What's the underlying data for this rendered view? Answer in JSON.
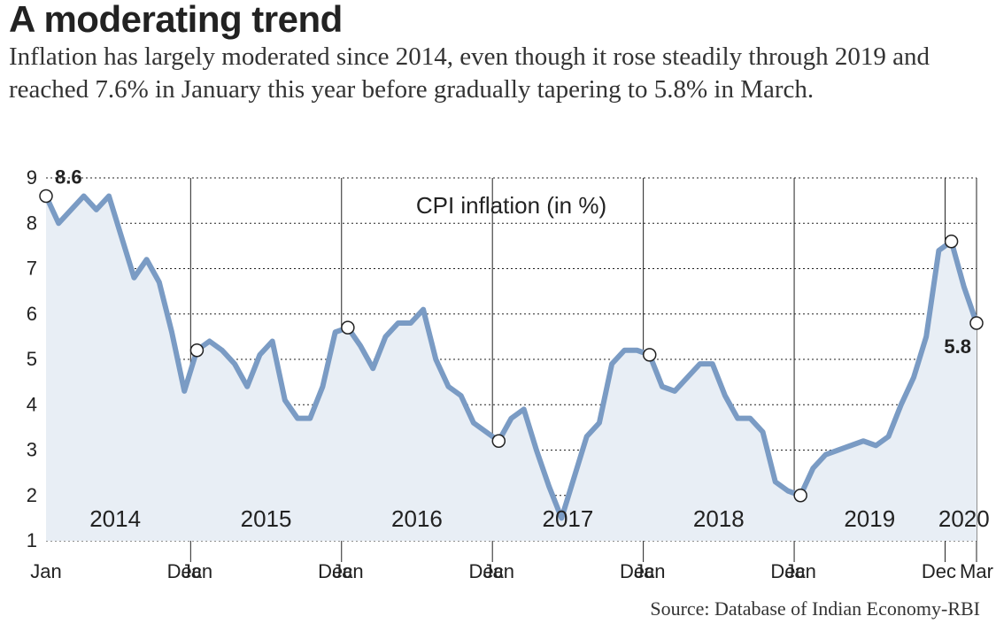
{
  "title": "A moderating trend",
  "subtitle": "Inflation has largely moderated since 2014, even though it rose steadily through 2019 and reached 7.6% in January this year before gradually tapering to 5.8% in March.",
  "source": "Source: Database of Indian Economy-RBI",
  "chart": {
    "type": "line-area",
    "legend": "CPI inflation (in %)",
    "line_color": "#7a9bc4",
    "line_width": 6,
    "area_color": "#e8eef5",
    "grid_color": "#222222",
    "background_color": "#ffffff",
    "marker_stroke": "#222222",
    "marker_fill": "#ffffff",
    "marker_radius": 7,
    "yaxis": {
      "min": 1,
      "max": 9,
      "ticks": [
        1,
        2,
        3,
        4,
        5,
        6,
        7,
        8,
        9
      ]
    },
    "years": [
      "2014",
      "2015",
      "2016",
      "2017",
      "2018",
      "2019",
      "2020"
    ],
    "month_labels": [
      "Jan",
      "Dec",
      "Jan",
      "Dec",
      "Jan",
      "Dec",
      "Jan",
      "Dec",
      "Jan",
      "Dec",
      "Jan",
      "Dec",
      "Mar"
    ],
    "values": [
      8.6,
      8.0,
      8.3,
      8.6,
      8.3,
      8.6,
      7.7,
      6.8,
      7.2,
      6.7,
      5.6,
      4.3,
      5.2,
      5.4,
      5.2,
      4.9,
      4.4,
      5.1,
      5.4,
      4.1,
      3.7,
      3.7,
      4.4,
      5.6,
      5.7,
      5.3,
      4.8,
      5.5,
      5.8,
      5.8,
      6.1,
      5.0,
      4.4,
      4.2,
      3.6,
      3.4,
      3.2,
      3.7,
      3.9,
      3.0,
      2.2,
      1.5,
      2.4,
      3.3,
      3.6,
      4.9,
      5.2,
      5.2,
      5.1,
      4.4,
      4.3,
      4.6,
      4.9,
      4.9,
      4.2,
      3.7,
      3.7,
      3.4,
      2.3,
      2.1,
      2.0,
      2.6,
      2.9,
      3.0,
      3.1,
      3.2,
      3.1,
      3.3,
      4.0,
      4.6,
      5.5,
      7.4,
      7.6,
      6.6,
      5.8
    ],
    "first_point": {
      "index": 0,
      "label": "8.6"
    },
    "last_point": {
      "index": 74,
      "label": "5.8"
    },
    "year_markers": [
      {
        "index": 0,
        "label": "Jan"
      },
      {
        "index": 11,
        "label": "Dec"
      },
      {
        "index": 12,
        "label": "Jan"
      },
      {
        "index": 23,
        "label": "Dec"
      },
      {
        "index": 24,
        "label": "Jan"
      },
      {
        "index": 35,
        "label": "Dec"
      },
      {
        "index": 36,
        "label": "Jan"
      },
      {
        "index": 47,
        "label": "Dec"
      },
      {
        "index": 48,
        "label": "Jan"
      },
      {
        "index": 59,
        "label": "Dec"
      },
      {
        "index": 60,
        "label": "Jan"
      },
      {
        "index": 71,
        "label": "Dec"
      },
      {
        "index": 74,
        "label": "Mar"
      }
    ],
    "year_starts": [
      0,
      12,
      24,
      36,
      48,
      60,
      72
    ]
  }
}
